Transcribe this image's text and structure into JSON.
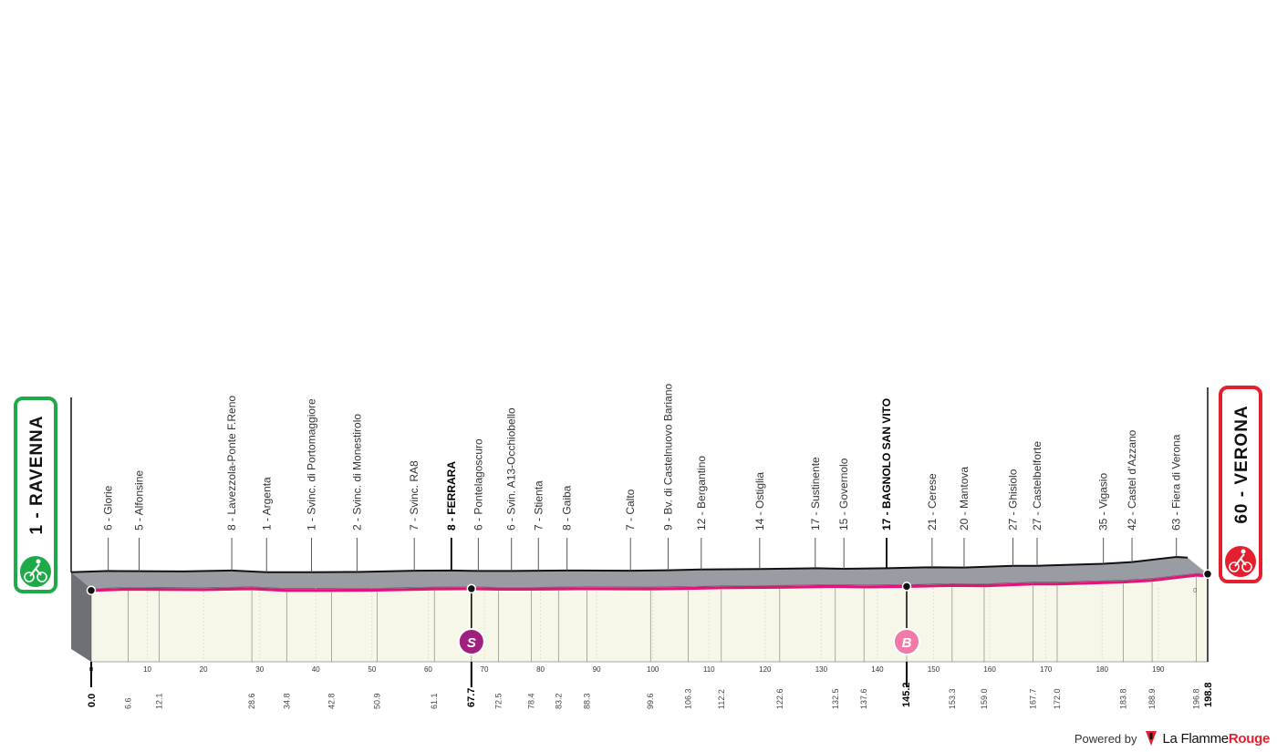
{
  "chart_data": {
    "type": "area",
    "title": "",
    "xlabel": "",
    "ylabel": "",
    "xlim": [
      0,
      198.8
    ],
    "ylim": [
      0,
      20
    ],
    "x_ticks": [
      10,
      20,
      30,
      40,
      50,
      60,
      70,
      80,
      90,
      100,
      110,
      120,
      130,
      140,
      150,
      160,
      170,
      180,
      190
    ],
    "alt_tick_label": "0",
    "start": {
      "label": "1 - RAVENNA",
      "km": "0.0",
      "color": "#1faa4a",
      "altitude": 1
    },
    "finish": {
      "label": "60 - VERONA",
      "km": "198.8",
      "color": "#e5202e",
      "altitude": 60
    },
    "profile_points": [
      [
        0,
        1
      ],
      [
        6.6,
        6
      ],
      [
        12.1,
        5
      ],
      [
        20,
        4
      ],
      [
        28.6,
        8
      ],
      [
        34.8,
        1
      ],
      [
        42.8,
        1
      ],
      [
        50.9,
        2
      ],
      [
        61.1,
        7
      ],
      [
        67.7,
        8
      ],
      [
        72.5,
        6
      ],
      [
        78.4,
        6
      ],
      [
        83.2,
        7
      ],
      [
        88.3,
        8
      ],
      [
        99.6,
        7
      ],
      [
        106.3,
        9
      ],
      [
        112.2,
        12
      ],
      [
        122.6,
        14
      ],
      [
        132.5,
        17
      ],
      [
        137.6,
        15
      ],
      [
        145.2,
        17
      ],
      [
        153.3,
        21
      ],
      [
        159.0,
        20
      ],
      [
        167.7,
        27
      ],
      [
        172.0,
        27
      ],
      [
        183.8,
        35
      ],
      [
        188.9,
        42
      ],
      [
        196.8,
        63
      ],
      [
        198.8,
        60
      ]
    ],
    "waypoints": [
      {
        "km_label": "6.6",
        "name": "6 - Glorie"
      },
      {
        "km_label": "12.1",
        "name": "5 - Alfonsine"
      },
      {
        "km_label": "28.6",
        "name": "8 - Lavezzola-Ponte F.Reno"
      },
      {
        "km_label": "34.8",
        "name": "1 - Argenta"
      },
      {
        "km_label": "42.8",
        "name": "1 - Svinc. di Portomaggiore"
      },
      {
        "km_label": "50.9",
        "name": "2 - Svinc. di Monestirolo"
      },
      {
        "km_label": "61.1",
        "name": "7 - Svinc. RA8"
      },
      {
        "km_label": "67.7",
        "name": "8 - FERRARA",
        "major": true
      },
      {
        "km_label": "72.5",
        "name": "6 - Pontelagoscuro"
      },
      {
        "km_label": "78.4",
        "name": "6 - Svin. A13-Occhiobello"
      },
      {
        "km_label": "83.2",
        "name": "7 - Stienta"
      },
      {
        "km_label": "88.3",
        "name": "8 - Gaiba"
      },
      {
        "km_label": "99.6",
        "name": "7 - Calto"
      },
      {
        "km_label": "106.3",
        "name": "9 - Bv. di Castelnuovo Bariano"
      },
      {
        "km_label": "112.2",
        "name": "12 - Bergantino"
      },
      {
        "km_label": "122.6",
        "name": "14 - Ostiglia"
      },
      {
        "km_label": "132.5",
        "name": "17 - Sustinente"
      },
      {
        "km_label": "137.6",
        "name": "15 - Governolo"
      },
      {
        "km_label": "145.2",
        "name": "17 - BAGNOLO SAN VITO",
        "major": true
      },
      {
        "km_label": "153.3",
        "name": "21 - Cerese"
      },
      {
        "km_label": "159.0",
        "name": "20 - Mantova"
      },
      {
        "km_label": "167.7",
        "name": "27 - Ghisiolo"
      },
      {
        "km_label": "172.0",
        "name": "27 - Castelbelforte"
      },
      {
        "km_label": "183.8",
        "name": "35 - Vigasio"
      },
      {
        "km_label": "188.9",
        "name": "42 - Castel d'Azzano"
      },
      {
        "km_label": "196.8",
        "name": "63 - Fiera di Verona"
      }
    ],
    "markers": [
      {
        "letter": "S",
        "km": 67.7,
        "color": "#a0207f"
      },
      {
        "letter": "B",
        "km": 145.2,
        "color": "#f07aa8"
      }
    ],
    "colors": {
      "route": "#e0157a",
      "profile_top": "#999ca3",
      "profile_side": "#6e7075",
      "profile_face": "#f6f7e8",
      "grid": "#c8c8c8"
    }
  },
  "footer": {
    "powered_by": "Powered by",
    "brand_prefix": "La Flamme",
    "brand_suffix": "Rouge",
    "brand_color": "#e5202e"
  }
}
